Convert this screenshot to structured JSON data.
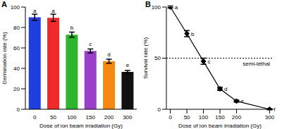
{
  "chart_data": [
    {
      "type": "bar",
      "title": "A",
      "x_label": "Dose of ion beam irradiation (Gy)",
      "y_label": "Germination rate (%)",
      "categories": [
        "0",
        "50",
        "100",
        "150",
        "200",
        "300"
      ],
      "values": [
        90,
        89.5,
        73,
        57,
        47,
        36.5
      ],
      "errors": [
        3,
        3.5,
        2.5,
        2,
        2,
        1.5
      ],
      "letters": [
        "a",
        "a",
        "b",
        "c",
        "d",
        "e"
      ],
      "colors": [
        "#1f3ee0",
        "#ee2a2a",
        "#2db52d",
        "#9a3fc8",
        "#f5880f",
        "#111111"
      ],
      "ylim": [
        0,
        100
      ],
      "yticks": [
        0,
        20,
        40,
        60,
        80,
        100
      ]
    },
    {
      "type": "line",
      "title": "B",
      "x_label": "Dose of ion beam irradiation (Gy)",
      "y_label": "Survival rate (%)",
      "x": [
        0,
        50,
        100,
        150,
        200,
        300
      ],
      "values": [
        100,
        74,
        47,
        20,
        8,
        0
      ],
      "errors": [
        1,
        3,
        3,
        1.5,
        1,
        0.5
      ],
      "letters": [
        "a",
        "b",
        "c",
        "d",
        "e",
        "f"
      ],
      "color": "#000000",
      "marker": "diamond",
      "annotations": [
        {
          "text": "semi-lethal",
          "y": 50,
          "line_style": "dotted"
        }
      ],
      "xlim": [
        -12,
        312
      ],
      "xticks": [
        0,
        50,
        100,
        150,
        200,
        300
      ],
      "ylim": [
        0,
        100
      ],
      "yticks": [
        0,
        50,
        100
      ]
    }
  ]
}
